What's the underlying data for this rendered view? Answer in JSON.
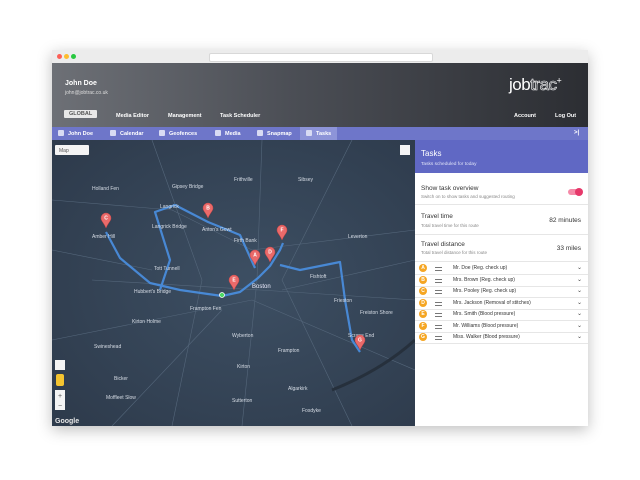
{
  "header": {
    "user_name": "John Doe",
    "user_email": "john@jobtrac.co.uk",
    "logo_main": "job",
    "logo_accent": "trac",
    "logo_plus": "+"
  },
  "nav": {
    "left": [
      "GLOBAL",
      "Media Editor",
      "Management",
      "Task Scheduler"
    ],
    "right": [
      "Account",
      "Log Out"
    ]
  },
  "tabs": [
    "John Doe",
    "Calendar",
    "Geofences",
    "Media",
    "Snapmap",
    "Tasks"
  ],
  "map": {
    "type_selector": "Map",
    "attribution": "Google",
    "places": [
      "Holland Fen",
      "Gipsey Bridge",
      "Frithville",
      "Sibsey",
      "Langrick",
      "Anton's Gowt",
      "Amber Hill",
      "Langrick Bridge",
      "Firth Bank",
      "Leverton",
      "Tott Tunnell",
      "Boston",
      "Hubbert's Bridge",
      "Fishtoft",
      "Frieston",
      "Freiston Shore",
      "Kirton Holme",
      "Frampton Fen",
      "Wyberton",
      "Scrane End",
      "Swineshead",
      "Kirton",
      "Frampton",
      "Bicker",
      "Sutterton",
      "Algarkirk",
      "Moffleet Slow",
      "Fosdyke"
    ],
    "zoom_in": "+",
    "zoom_out": "−"
  },
  "panel": {
    "title": "Tasks",
    "subtitle": "Tasks scheduled for today",
    "overview": {
      "label": "Show task overview",
      "hint": "Switch on to show tasks and suggested routing"
    },
    "travel_time": {
      "label": "Travel time",
      "hint": "Total travel time for this route",
      "value": "82 minutes"
    },
    "travel_distance": {
      "label": "Travel distance",
      "hint": "Total travel distance for this route",
      "value": "33 miles"
    },
    "tasks": [
      {
        "letter": "A",
        "name": "Mr. Doe (Reg. check up)"
      },
      {
        "letter": "B",
        "name": "Mrs. Brown (Reg. check up)"
      },
      {
        "letter": "C",
        "name": "Mrs. Pooley (Reg. check up)"
      },
      {
        "letter": "D",
        "name": "Mrs. Jackson (Removal of stitches)"
      },
      {
        "letter": "E",
        "name": "Mrs. Smith (Blood pressure)"
      },
      {
        "letter": "F",
        "name": "Mr. Williams (Blood pressure)"
      },
      {
        "letter": "G",
        "name": "Miss. Walker (Blood pressure)"
      }
    ]
  }
}
